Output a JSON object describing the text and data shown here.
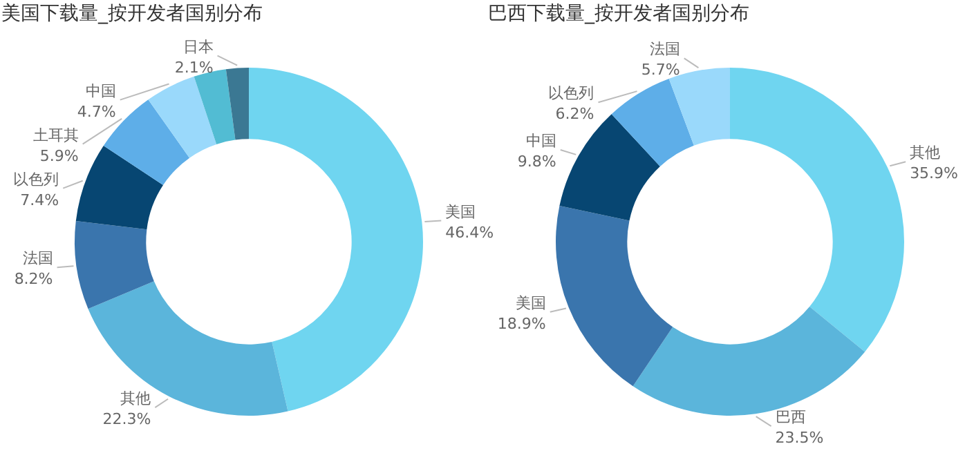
{
  "chart_data": [
    {
      "type": "donut",
      "title": "美国下载量_按开发者国别分布",
      "categories": [
        "美国",
        "其他",
        "法国",
        "以色列",
        "土耳其",
        "中国",
        null,
        "日本"
      ],
      "values": [
        46.4,
        22.3,
        8.2,
        7.4,
        5.9,
        4.7,
        3.0,
        2.1
      ],
      "value_labels": [
        "46.4%",
        "22.3%",
        "8.2%",
        "7.4%",
        "5.9%",
        "4.7%",
        null,
        "2.1%"
      ],
      "colors": [
        "#6fd5f0",
        "#5bb5db",
        "#3a75ad",
        "#074672",
        "#5eaee8",
        "#9ad9fb",
        "#52bcd3",
        "#3b7893"
      ]
    },
    {
      "type": "donut",
      "title": "巴西下载量_按开发者国别分布",
      "categories": [
        "其他",
        "巴西",
        "美国",
        "中国",
        "以色列",
        "法国"
      ],
      "values": [
        35.9,
        23.5,
        18.9,
        9.8,
        6.2,
        5.7
      ],
      "value_labels": [
        "35.9%",
        "23.5%",
        "18.9%",
        "9.8%",
        "6.2%",
        "5.7%"
      ],
      "colors": [
        "#6fd5f0",
        "#5bb5db",
        "#3a75ad",
        "#074672",
        "#5eaee8",
        "#9ad9fb"
      ]
    }
  ]
}
